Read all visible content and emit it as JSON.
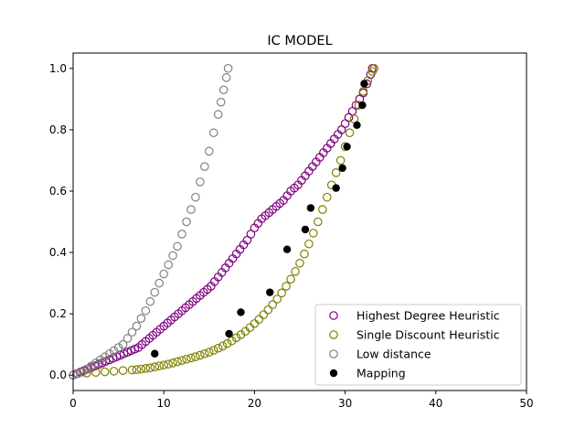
{
  "chart_data": {
    "type": "scatter",
    "title": "IC MODEL",
    "xlabel": "",
    "ylabel": "",
    "xlim": [
      0,
      50
    ],
    "ylim": [
      -0.05,
      1.05
    ],
    "xticks": [
      0,
      10,
      20,
      30,
      40,
      50
    ],
    "yticks": [
      0.0,
      0.2,
      0.4,
      0.6,
      0.8,
      1.0
    ],
    "xtick_labels": [
      "0",
      "10",
      "20",
      "30",
      "40",
      "50"
    ],
    "ytick_labels": [
      "0.0",
      "0.2",
      "0.4",
      "0.6",
      "0.8",
      "1.0"
    ],
    "grid": false,
    "legend_position": "lower right",
    "series": [
      {
        "name": "Highest Degree Heuristic",
        "color": "#800080",
        "marker": "hollow-circle",
        "x": [
          0.0,
          0.4,
          0.8,
          1.2,
          1.6,
          2.0,
          2.4,
          2.8,
          3.2,
          3.6,
          4.0,
          4.4,
          4.8,
          5.2,
          5.6,
          6.0,
          6.4,
          6.8,
          7.2,
          7.6,
          8.0,
          8.4,
          8.8,
          9.2,
          9.6,
          10.0,
          10.4,
          10.8,
          11.2,
          11.6,
          12.0,
          12.4,
          12.8,
          13.2,
          13.6,
          14.0,
          14.4,
          14.8,
          15.2,
          15.6,
          16.0,
          16.4,
          16.8,
          17.2,
          17.6,
          18.0,
          18.4,
          18.8,
          19.2,
          19.6,
          20.0,
          20.4,
          20.8,
          21.2,
          21.6,
          22.0,
          22.4,
          22.8,
          23.2,
          23.6,
          24.0,
          24.4,
          24.8,
          25.2,
          25.6,
          26.0,
          26.4,
          26.8,
          27.2,
          27.6,
          28.0,
          28.4,
          28.8,
          29.2,
          29.6,
          30.0,
          30.4,
          30.8,
          31.2,
          31.6,
          32.0,
          32.4,
          32.8,
          33.0
        ],
        "y": [
          0.0,
          0.005,
          0.01,
          0.015,
          0.02,
          0.025,
          0.03,
          0.035,
          0.04,
          0.045,
          0.05,
          0.055,
          0.06,
          0.065,
          0.07,
          0.075,
          0.08,
          0.085,
          0.09,
          0.1,
          0.11,
          0.12,
          0.13,
          0.14,
          0.15,
          0.16,
          0.17,
          0.18,
          0.19,
          0.2,
          0.21,
          0.22,
          0.23,
          0.24,
          0.25,
          0.26,
          0.27,
          0.28,
          0.29,
          0.305,
          0.32,
          0.335,
          0.35,
          0.365,
          0.38,
          0.395,
          0.41,
          0.425,
          0.44,
          0.46,
          0.48,
          0.495,
          0.51,
          0.52,
          0.53,
          0.54,
          0.55,
          0.56,
          0.57,
          0.585,
          0.6,
          0.61,
          0.62,
          0.635,
          0.65,
          0.665,
          0.68,
          0.695,
          0.71,
          0.725,
          0.74,
          0.755,
          0.77,
          0.785,
          0.8,
          0.82,
          0.84,
          0.86,
          0.88,
          0.9,
          0.92,
          0.95,
          0.98,
          1.0
        ]
      },
      {
        "name": "Single Discount Heuristic",
        "color": "#808000",
        "marker": "hollow-circle",
        "x": [
          0.5,
          1.5,
          2.5,
          3.5,
          4.5,
          5.5,
          6.5,
          7.0,
          7.5,
          8.0,
          8.5,
          9.0,
          9.5,
          10.0,
          10.5,
          11.0,
          11.5,
          12.0,
          12.5,
          13.0,
          13.5,
          14.0,
          14.5,
          15.0,
          15.5,
          16.0,
          16.5,
          17.0,
          17.5,
          18.0,
          18.5,
          19.0,
          19.5,
          20.0,
          20.5,
          21.0,
          21.5,
          22.0,
          22.5,
          23.0,
          23.5,
          24.0,
          24.5,
          25.0,
          25.5,
          26.0,
          26.5,
          27.0,
          27.5,
          28.0,
          28.5,
          29.0,
          29.5,
          30.0,
          30.5,
          31.0,
          31.5,
          32.0,
          32.5,
          33.0,
          33.2
        ],
        "y": [
          0.005,
          0.007,
          0.009,
          0.011,
          0.013,
          0.015,
          0.017,
          0.018,
          0.02,
          0.022,
          0.024,
          0.027,
          0.03,
          0.033,
          0.036,
          0.04,
          0.044,
          0.048,
          0.052,
          0.056,
          0.06,
          0.065,
          0.07,
          0.075,
          0.081,
          0.088,
          0.095,
          0.103,
          0.112,
          0.122,
          0.132,
          0.143,
          0.155,
          0.168,
          0.182,
          0.197,
          0.213,
          0.23,
          0.248,
          0.268,
          0.29,
          0.313,
          0.338,
          0.365,
          0.395,
          0.428,
          0.463,
          0.5,
          0.54,
          0.58,
          0.62,
          0.66,
          0.7,
          0.745,
          0.79,
          0.835,
          0.88,
          0.925,
          0.96,
          0.99,
          1.0
        ]
      },
      {
        "name": "Low distance",
        "color": "#808080",
        "marker": "hollow-circle",
        "x": [
          0.0,
          0.5,
          1.0,
          1.5,
          2.0,
          2.5,
          3.0,
          3.5,
          4.0,
          4.5,
          5.0,
          5.5,
          6.0,
          6.5,
          7.0,
          7.5,
          8.0,
          8.5,
          9.0,
          9.5,
          10.0,
          10.5,
          11.0,
          11.5,
          12.0,
          12.5,
          13.0,
          13.5,
          14.0,
          14.5,
          15.0,
          15.5,
          16.0,
          16.3,
          16.6,
          16.9,
          17.1
        ],
        "y": [
          0.0,
          0.005,
          0.01,
          0.02,
          0.03,
          0.04,
          0.05,
          0.06,
          0.07,
          0.08,
          0.09,
          0.1,
          0.12,
          0.14,
          0.16,
          0.185,
          0.21,
          0.24,
          0.27,
          0.3,
          0.33,
          0.36,
          0.39,
          0.42,
          0.46,
          0.5,
          0.54,
          0.58,
          0.63,
          0.68,
          0.73,
          0.79,
          0.85,
          0.89,
          0.93,
          0.97,
          1.0
        ]
      },
      {
        "name": "Mapping",
        "color": "#000000",
        "marker": "filled-circle",
        "x": [
          9.0,
          17.2,
          18.5,
          21.7,
          23.6,
          25.6,
          26.2,
          29.0,
          29.7,
          30.2,
          31.3,
          31.9,
          32.1
        ],
        "y": [
          0.07,
          0.135,
          0.205,
          0.27,
          0.41,
          0.475,
          0.545,
          0.61,
          0.675,
          0.745,
          0.815,
          0.88,
          0.95
        ]
      }
    ]
  }
}
